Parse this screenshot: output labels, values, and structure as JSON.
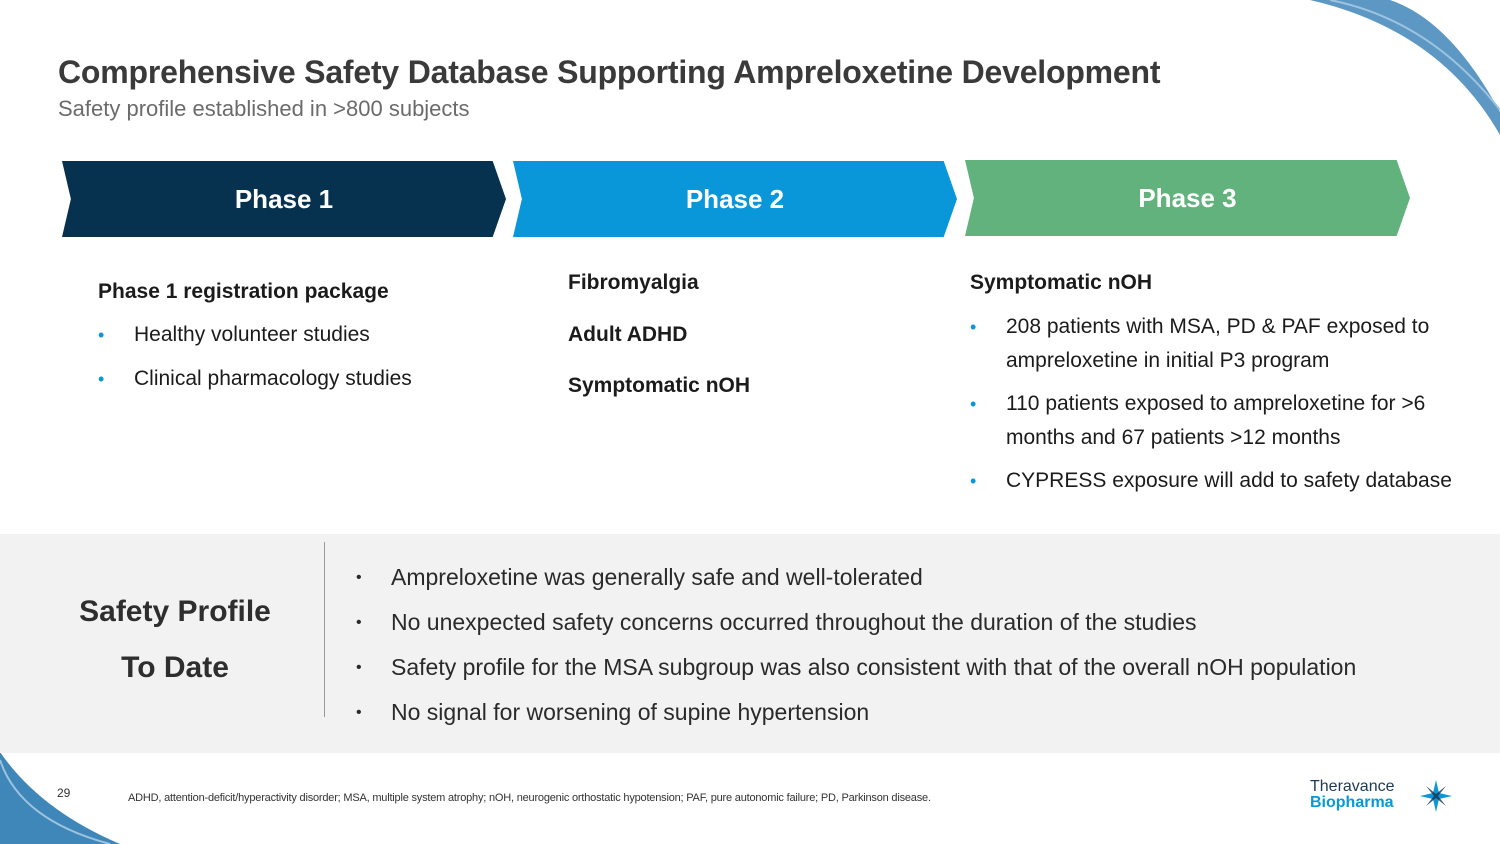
{
  "slide": {
    "title": "Comprehensive Safety Database Supporting Ampreloxetine Development",
    "subtitle": "Safety profile established in >800 subjects"
  },
  "phases": [
    {
      "label": "Phase 1",
      "color": "#06324f"
    },
    {
      "label": "Phase 2",
      "color": "#0a97d9"
    },
    {
      "label": "Phase 3",
      "color": "#61b27c"
    }
  ],
  "phase1": {
    "heading": "Phase 1 registration package",
    "bullets": [
      "Healthy volunteer studies",
      "Clinical pharmacology studies"
    ]
  },
  "phase2": {
    "items": [
      "Fibromyalgia",
      "Adult ADHD",
      "Symptomatic nOH"
    ]
  },
  "phase3": {
    "heading": "Symptomatic nOH",
    "bullets": [
      "208 patients with MSA, PD & PAF exposed to ampreloxetine in initial P3 program",
      "110 patients exposed to ampreloxetine for >6 months and 67 patients >12 months",
      "CYPRESS exposure will add to safety database"
    ]
  },
  "safety": {
    "title_line1": "Safety Profile",
    "title_line2": "To Date",
    "bullets": [
      "Ampreloxetine was generally safe and well-tolerated",
      "No unexpected safety concerns occurred throughout the duration of the studies",
      "Safety profile for the MSA subgroup was also consistent with that of the overall nOH population",
      "No signal for worsening of supine hypertension"
    ]
  },
  "footer": {
    "page_number": "29",
    "footnote": "ADHD, attention-deficit/hyperactivity disorder; MSA, multiple system atrophy; nOH, neurogenic orthostatic hypotension; PAF, pure autonomic failure; PD, Parkinson disease.",
    "logo_line1": "Theravance",
    "logo_line2": "Biopharma"
  },
  "colors": {
    "bullet_accent": "#0a97d9",
    "band_background": "#f2f2f2"
  }
}
